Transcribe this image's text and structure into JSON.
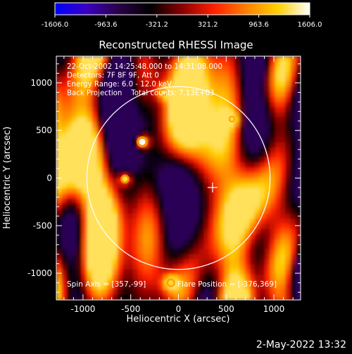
{
  "colorbar": {
    "ticks": [
      "-1606.0",
      "-963.6",
      "-321.2",
      "321.2",
      "963.6",
      "1606.0"
    ],
    "stops": [
      "#0000ff",
      "#3a00c0",
      "#2a0048",
      "#000000",
      "#8b0000",
      "#ff2000",
      "#ff8000",
      "#ffd000",
      "#ffffff"
    ]
  },
  "chart_data": {
    "type": "heatmap",
    "title": "Reconstructed RHESSI Image",
    "xlabel": "Heliocentric X (arcsec)",
    "ylabel": "Heliocentric Y (arcsec)",
    "xlim": [
      -1280,
      1280
    ],
    "ylim": [
      -1280,
      1280
    ],
    "x_ticks": [
      "-1000",
      "-500",
      "0",
      "500",
      "1000"
    ],
    "y_ticks": [
      "1000",
      "500",
      "0",
      "-500",
      "-1000"
    ],
    "x_tick_values": [
      -1000,
      -500,
      0,
      500,
      1000
    ],
    "y_tick_values": [
      1000,
      500,
      0,
      -500,
      -1000
    ],
    "value_range": [
      -1606.0,
      1606.0
    ],
    "solar_disk": {
      "center": [
        0,
        0
      ],
      "radius": 960
    },
    "flare_marker": [
      357,
      -99
    ],
    "info_lines": [
      "22-Oct-2002 14:25:48.000 to 14:31:08.000",
      "Detectors: 7F 8F 9F, Att 0",
      "Energy Range: 6.0 - 12.0 keV",
      "Back Projection    Total counts: 7.13E+03"
    ],
    "spin_axis_text": "Spin Axis = [357,-99]",
    "flare_position_text": "Flare Position = [-376,369]",
    "bright_sources": [
      {
        "x": -380,
        "y": 380,
        "intensity": 1606
      },
      {
        "x": -560,
        "y": -10,
        "intensity": 1300
      },
      {
        "x": -80,
        "y": -1100,
        "intensity": 1250
      },
      {
        "x": -150,
        "y": 900,
        "intensity": 1000
      },
      {
        "x": 560,
        "y": 620,
        "intensity": 950
      }
    ]
  },
  "footer": {
    "timestamp": "2-May-2022 13:32"
  }
}
